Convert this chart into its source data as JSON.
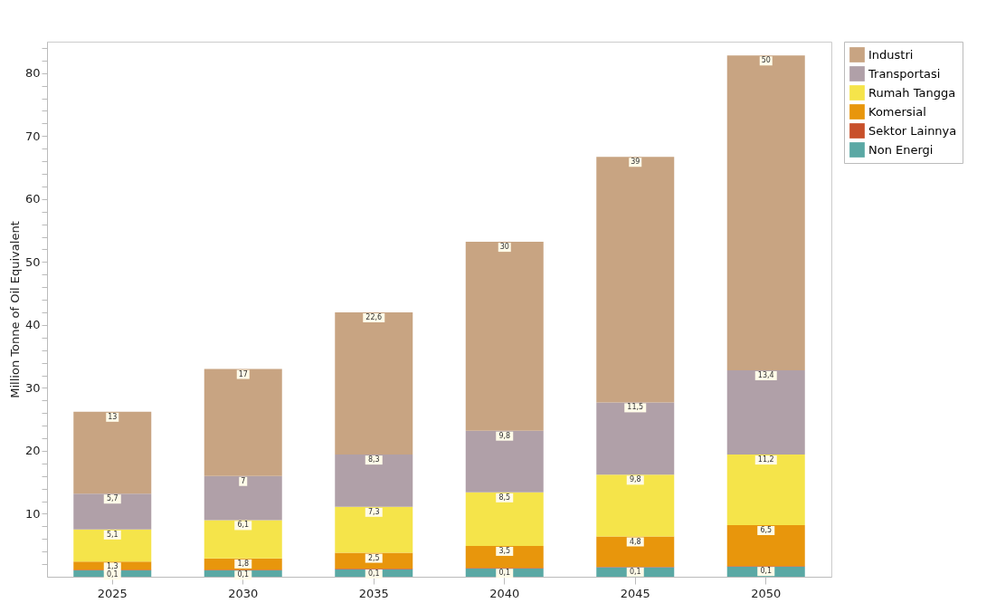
{
  "chart_data": {
    "type": "bar",
    "stacked": true,
    "ylabel": "Million Tonne of Oil Equivalent",
    "categories": [
      "2025",
      "2030",
      "2035",
      "2040",
      "2045",
      "2050"
    ],
    "series": [
      {
        "name": "Non Energi",
        "color": "#5aa8a4",
        "values": [
          1.0,
          1.0,
          1.2,
          1.3,
          1.5,
          1.6
        ]
      },
      {
        "name": "Sektor Lainnya",
        "color": "#c8502a",
        "values": [
          0.1,
          0.1,
          0.1,
          0.1,
          0.1,
          0.1
        ],
        "value_labels": [
          "0,1",
          "0,1",
          "0,1",
          "0,1",
          "0,1",
          "0,1"
        ]
      },
      {
        "name": "Komersial",
        "color": "#e8960c",
        "values": [
          1.3,
          1.8,
          2.5,
          3.5,
          4.8,
          6.5
        ],
        "value_labels": [
          "1,3",
          "1,8",
          "2,5",
          "3,5",
          "4,8",
          "6,5"
        ]
      },
      {
        "name": "Rumah Tangga",
        "color": "#f5e44a",
        "values": [
          5.1,
          6.1,
          7.3,
          8.5,
          9.8,
          11.2
        ],
        "value_labels": [
          "5,1",
          "6,1",
          "7,3",
          "8,5",
          "9,8",
          "11,2"
        ]
      },
      {
        "name": "Transportasi",
        "color": "#b0a0a8",
        "values": [
          5.7,
          7,
          8.3,
          9.8,
          11.5,
          13.4
        ],
        "value_labels": [
          "5,7",
          "7",
          "8,3",
          "9,8",
          "11,5",
          "13,4"
        ]
      },
      {
        "name": "Industri",
        "color": "#c8a482",
        "values": [
          13,
          17,
          22.6,
          30,
          39,
          50
        ],
        "value_labels": [
          "13",
          "17",
          "22,6",
          "30",
          "39",
          "50"
        ]
      }
    ],
    "ylim": [
      0,
      85
    ],
    "yticks": [
      {
        "value": 2,
        "label": null
      },
      {
        "value": 4,
        "label": null
      },
      {
        "value": 6,
        "label": null
      },
      {
        "value": 8,
        "label": null
      },
      10,
      {
        "value": 12,
        "label": null
      },
      {
        "value": 14,
        "label": null
      },
      {
        "value": 16,
        "label": null
      },
      {
        "value": 18,
        "label": null
      },
      20,
      {
        "value": 22,
        "label": null
      },
      {
        "value": 24,
        "label": null
      },
      {
        "value": 26,
        "label": null
      },
      {
        "value": 28,
        "label": null
      },
      30,
      {
        "value": 32,
        "label": null
      },
      {
        "value": 34,
        "label": null
      },
      {
        "value": 36,
        "label": null
      },
      {
        "value": 38,
        "label": null
      },
      40,
      {
        "value": 42,
        "label": null
      },
      {
        "value": 44,
        "label": null
      },
      {
        "value": 46,
        "label": null
      },
      {
        "value": 48,
        "label": null
      },
      50,
      {
        "value": 52,
        "label": null
      },
      {
        "value": 54,
        "label": null
      },
      {
        "value": 56,
        "label": null
      },
      {
        "value": 58,
        "label": null
      },
      60,
      {
        "value": 62,
        "label": null
      },
      {
        "value": 64,
        "label": null
      },
      {
        "value": 66,
        "label": null
      },
      {
        "value": 68,
        "label": null
      },
      70,
      {
        "value": 72,
        "label": null
      },
      {
        "value": 74,
        "label": null
      },
      {
        "value": 76,
        "label": null
      },
      {
        "value": 78,
        "label": null
      },
      80,
      {
        "value": 82,
        "label": null
      },
      {
        "value": 84,
        "label": null
      }
    ],
    "grid": false,
    "legend": "top right"
  }
}
